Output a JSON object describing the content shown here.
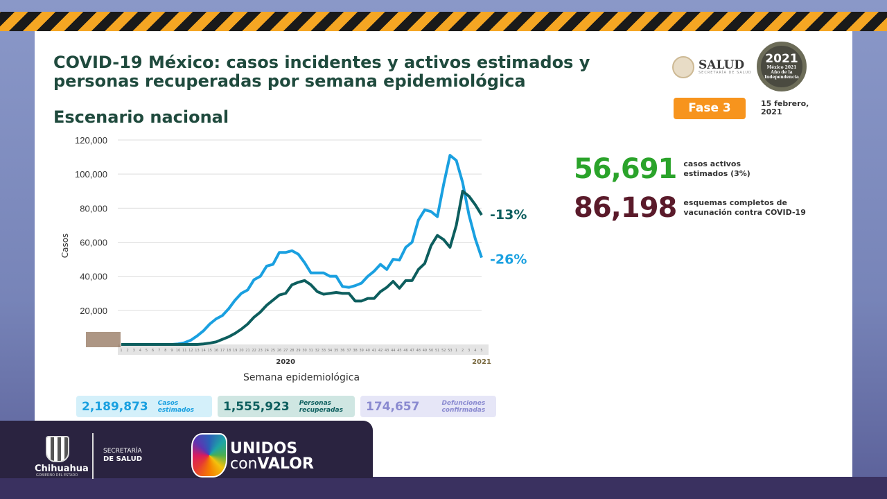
{
  "header": {
    "title": "COVID-19 México: casos incidentes y activos estimados y personas recuperadas por semana epidemiológica",
    "subtitle": "Escenario nacional",
    "logo_salud": "SALUD",
    "logo_salud_sub": "SECRETARÍA DE SALUD",
    "badge_2021": "México 2021 Año de la Independencia",
    "badge_year": "2021",
    "phase": "Fase 3",
    "date": "15 febrero, 2021"
  },
  "footer": {
    "chihuahua": "Chihuahua",
    "gobierno": "GOBIERNO DEL ESTADO",
    "secretaria_line1": "SECRETARÍA",
    "secretaria_line2": "DE SALUD",
    "unidos": "UNIDOS",
    "con": "con",
    "valor": "VALOR"
  },
  "kpis": [
    {
      "value": "56,691",
      "label": "casos activos estimados (3%)",
      "color": "#2aa32a"
    },
    {
      "value": "86,198",
      "label": "esquemas completos de vacunación contra COVID-19",
      "color": "#5a1a2a"
    }
  ],
  "summary": [
    {
      "value": "2,189,873",
      "label": "Casos estimados",
      "bg": "#d4f0fa",
      "color": "#1aa0e0"
    },
    {
      "value": "1,555,923",
      "label": "Personas recuperadas",
      "bg": "#cfe6e2",
      "color": "#0d5e5e"
    },
    {
      "value": "174,657",
      "label": "Defunciones confirmadas",
      "bg": "#e6e6f7",
      "color": "#8a8ad0"
    }
  ],
  "chart_data": {
    "type": "line",
    "title": "",
    "xlabel": "Semana epidemiológica",
    "ylabel": "Casos",
    "ylim": [
      0,
      120000
    ],
    "yticks": [
      20000,
      40000,
      60000,
      80000,
      100000,
      120000
    ],
    "ytick_labels": [
      "20,000",
      "40,000",
      "60,000",
      "80,000",
      "100,000",
      "120,000"
    ],
    "year_labels": [
      {
        "year": "2020",
        "at_week": "2020-27"
      },
      {
        "year": "2021",
        "at_week": "2021-5"
      }
    ],
    "grid": true,
    "x": [
      "2020-1",
      "2020-2",
      "2020-3",
      "2020-4",
      "2020-5",
      "2020-6",
      "2020-7",
      "2020-8",
      "2020-9",
      "2020-10",
      "2020-11",
      "2020-12",
      "2020-13",
      "2020-14",
      "2020-15",
      "2020-16",
      "2020-17",
      "2020-18",
      "2020-19",
      "2020-20",
      "2020-21",
      "2020-22",
      "2020-23",
      "2020-24",
      "2020-25",
      "2020-26",
      "2020-27",
      "2020-28",
      "2020-29",
      "2020-30",
      "2020-31",
      "2020-32",
      "2020-33",
      "2020-34",
      "2020-35",
      "2020-36",
      "2020-37",
      "2020-38",
      "2020-39",
      "2020-40",
      "2020-41",
      "2020-42",
      "2020-43",
      "2020-44",
      "2020-45",
      "2020-46",
      "2020-47",
      "2020-48",
      "2020-49",
      "2020-50",
      "2020-51",
      "2020-52",
      "2020-53",
      "2021-1",
      "2021-2",
      "2021-3",
      "2021-4",
      "2021-5"
    ],
    "series": [
      {
        "color": "#1aa0e0",
        "end_label": "-26%",
        "values": [
          0,
          0,
          0,
          0,
          0,
          0,
          0,
          0,
          0,
          300,
          1000,
          2500,
          5000,
          8000,
          12000,
          15000,
          17000,
          21000,
          26000,
          30000,
          32000,
          38000,
          40000,
          46000,
          47000,
          54000,
          54000,
          55000,
          53000,
          48000,
          42000,
          42000,
          42000,
          40000,
          40000,
          34000,
          33500,
          34500,
          36000,
          40000,
          43000,
          47000,
          44000,
          50000,
          49500,
          57000,
          60000,
          73000,
          79000,
          78000,
          75000,
          94000,
          111000,
          108000,
          95000,
          76000,
          62000,
          51000
        ]
      },
      {
        "color": "#0d5e5e",
        "end_label": "-13%",
        "values": [
          0,
          0,
          0,
          0,
          0,
          0,
          0,
          0,
          0,
          0,
          0,
          0,
          0,
          300,
          800,
          1500,
          3000,
          4500,
          6500,
          9000,
          12000,
          16000,
          19000,
          23000,
          26000,
          29000,
          30000,
          35000,
          36500,
          37500,
          35000,
          31000,
          29500,
          30000,
          30500,
          30000,
          30000,
          25500,
          25500,
          27000,
          27000,
          31000,
          33500,
          37000,
          33000,
          37500,
          37500,
          44000,
          47500,
          58000,
          64000,
          61500,
          57000,
          70000,
          90000,
          87000,
          82000,
          76000
        ]
      }
    ]
  }
}
